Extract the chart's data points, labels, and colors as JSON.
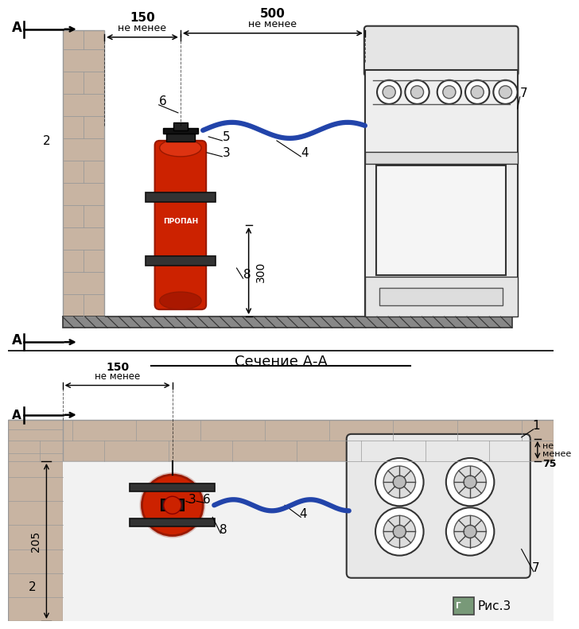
{
  "bg": "white",
  "wall_fill": "#c8b4a2",
  "wall_line": "#999999",
  "floor_fill": "#777777",
  "cyl_red": "#cc2200",
  "cyl_dark": "#991800",
  "cyl_label": "ПРОПАН",
  "hose_color": "#2244aa",
  "stove_fill": "#eeeeee",
  "stove_line": "#333333",
  "bracket_fill": "#333333",
  "dim_color": "#111111",
  "text_color": "#111111",
  "section_text": "Сечение А-А",
  "ris_text": "Рис.3",
  "A_label": "А",
  "ne_menee_150": "не менее\n150",
  "ne_menee_500": "не менее\n500",
  "ne_menee_75": "не менее\n75",
  "dim_300": "300",
  "dim_205": "205"
}
